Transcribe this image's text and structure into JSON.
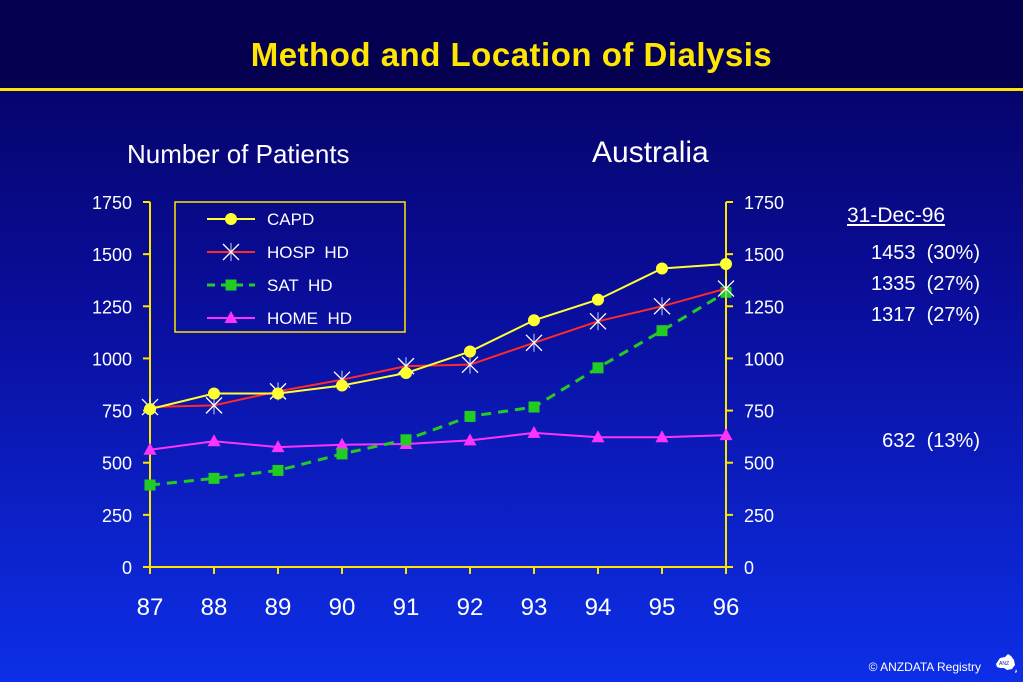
{
  "header": {
    "title": "Method and Location of Dialysis"
  },
  "labels": {
    "left": "Number of Patients",
    "right": "Australia"
  },
  "side": {
    "date": "31-Dec-96",
    "values": [
      "1453  (30%)",
      "1335  (27%)",
      "1317  (27%)",
      "632  (13%)"
    ]
  },
  "footer": {
    "copyright": "© ANZDATA Registry"
  },
  "colors": {
    "axis": "#ffe600",
    "text": "#ffffff",
    "capd": "#ffff33",
    "hosp": "#ff2a2a",
    "sat": "#22cc22",
    "home": "#ff33ff"
  },
  "chart_data": {
    "type": "line",
    "title": "Method and Location of Dialysis",
    "xlabel": "",
    "ylabel": "Number of Patients",
    "categories": [
      "87",
      "88",
      "89",
      "90",
      "91",
      "92",
      "93",
      "94",
      "95",
      "96"
    ],
    "ylim": [
      0,
      1750
    ],
    "yticks": [
      0,
      250,
      500,
      750,
      1000,
      1250,
      1500,
      1750
    ],
    "grid": false,
    "legend_position": "top-left",
    "series": [
      {
        "name": "CAPD",
        "marker": "circle",
        "color": "#ffff33",
        "dash": "",
        "values": [
          757,
          832,
          832,
          870,
          930,
          1033,
          1183,
          1282,
          1431,
          1453
        ]
      },
      {
        "name": "HOSP  HD",
        "marker": "x",
        "color": "#ff2a2a",
        "dash": "",
        "values": [
          767,
          775,
          842,
          898,
          963,
          970,
          1075,
          1178,
          1250,
          1335
        ]
      },
      {
        "name": "SAT  HD",
        "marker": "square",
        "color": "#22cc22",
        "dash": "10,7",
        "values": [
          393,
          425,
          463,
          542,
          610,
          722,
          767,
          955,
          1133,
          1317
        ]
      },
      {
        "name": "HOME  HD",
        "marker": "triangle",
        "color": "#ff33ff",
        "dash": "",
        "values": [
          562,
          603,
          575,
          586,
          590,
          607,
          643,
          622,
          622,
          632
        ]
      }
    ]
  }
}
